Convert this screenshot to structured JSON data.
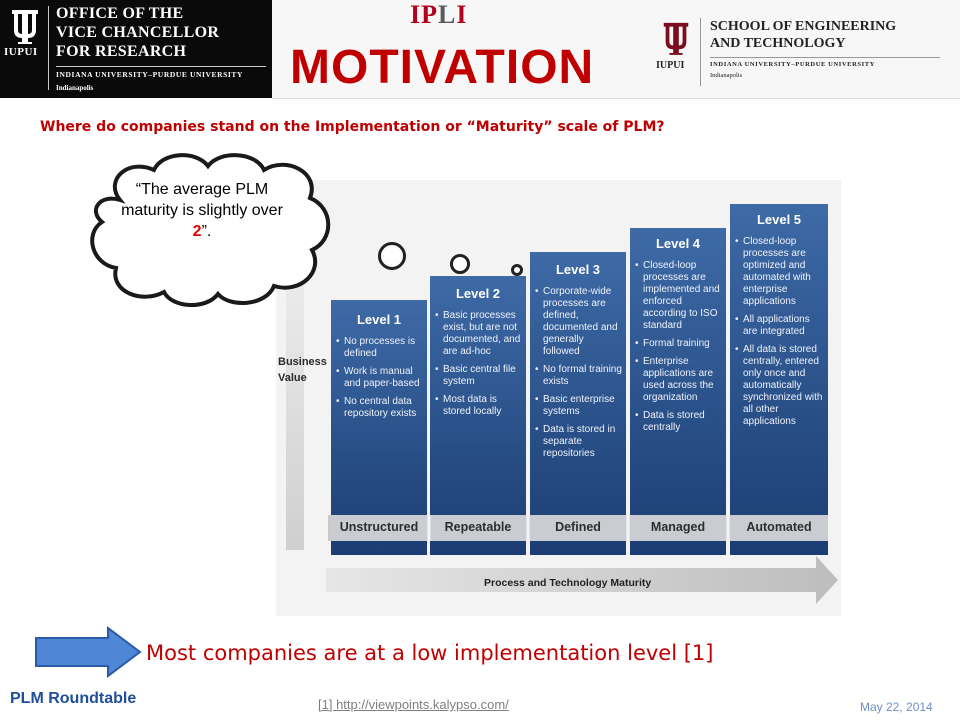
{
  "header": {
    "left_logo": {
      "mark": "iu-trident-icon",
      "iupui": "IUPUI",
      "office_title": "OFFICE OF THE\nVICE CHANCELLOR\nFOR RESEARCH",
      "university": "INDIANA UNIVERSITY–PURDUE UNIVERSITY",
      "city": "Indianapolis"
    },
    "ipli": {
      "first": "IP",
      "second": "L",
      "third": "I"
    },
    "right_logo": {
      "mark": "iu-trident-icon",
      "iupui": "IUPUI",
      "school_title": "SCHOOL OF ENGINEERING\nAND TECHNOLOGY",
      "university": "INDIANA UNIVERSITY–PURDUE UNIVERSITY",
      "city": "Indianapolis"
    }
  },
  "slide": {
    "title": "MOTIVATION",
    "question": "Where do companies stand on the Implementation or “Maturity” scale of PLM?",
    "cloud": {
      "text_before": "“The average PLM maturity is slightly over ",
      "number": "2",
      "text_after": "”."
    },
    "bottom_message": "Most companies are at a low implementation level [1]"
  },
  "figure": {
    "y_axis_label": "Business\nValue",
    "x_axis_label": "Process and Technology Maturity",
    "levels": [
      {
        "title": "Level 1",
        "stage": "Unstructured",
        "bullets": [
          "No processes is defined",
          "Work is manual and paper-based",
          "No central data repository exists"
        ]
      },
      {
        "title": "Level 2",
        "stage": "Repeatable",
        "bullets": [
          "Basic processes exist, but are not documented, and are ad-hoc",
          "Basic central file system",
          "Most data is stored locally"
        ]
      },
      {
        "title": "Level 3",
        "stage": "Defined",
        "bullets": [
          "Corporate-wide processes are defined, documented and generally followed",
          "No formal training exists",
          "Basic enterprise systems",
          "Data is stored in separate repositories"
        ]
      },
      {
        "title": "Level 4",
        "stage": "Managed",
        "bullets": [
          "Closed-loop processes are implemented and enforced according to ISO standard",
          "Formal training",
          "Enterprise applications are used across the organization",
          "Data is stored centrally"
        ]
      },
      {
        "title": "Level 5",
        "stage": "Automated",
        "bullets": [
          "Closed-loop processes are optimized and automated with enterprise applications",
          "All applications are integrated",
          "All data is stored centrally, entered only once and automatically synchronized with all other applications"
        ]
      }
    ]
  },
  "footer": {
    "left": "PLM Roundtable",
    "reference": "[1] http://viewpoints.kalypso.com/",
    "date": "May 22, 2014"
  },
  "colors": {
    "title_red": "#c00000",
    "level_blue_light": "#4a6fa3",
    "level_blue_dark": "#1d3e72",
    "footer_blue": "#1f4e9c"
  }
}
